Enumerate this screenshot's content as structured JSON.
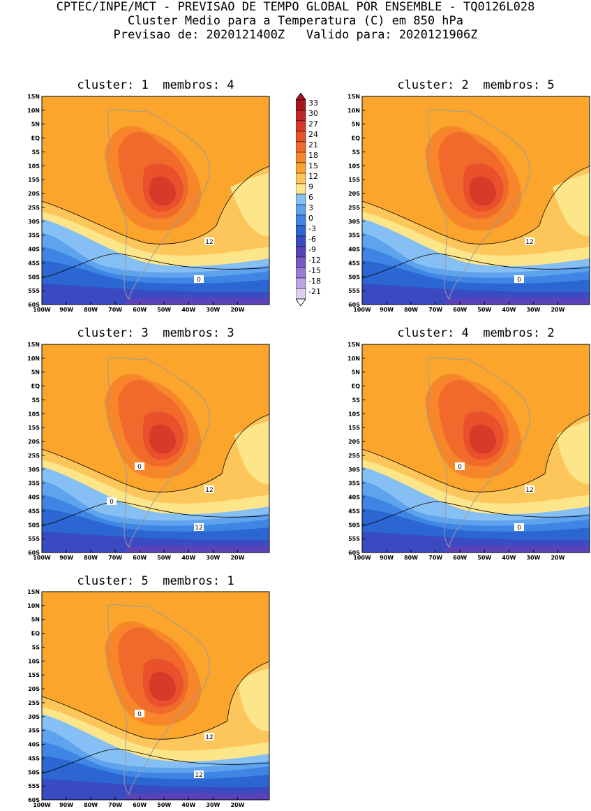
{
  "header": {
    "line1": "CPTEC/INPE/MCT - PREVISAO DE TEMPO GLOBAL POR ENSEMBLE - TQ0126L028",
    "line2": "Cluster Medio para a Temperatura (C) em 850 hPa",
    "line3": "Previsao de: 2020121400Z   Valido para: 2020121906Z"
  },
  "lat_labels": [
    "15N",
    "10N",
    "5N",
    "EQ",
    "5S",
    "10S",
    "15S",
    "20S",
    "25S",
    "30S",
    "35S",
    "40S",
    "45S",
    "50S",
    "55S",
    "60S"
  ],
  "lon_labels": [
    "100W",
    "90W",
    "80W",
    "70W",
    "60W",
    "50W",
    "40W",
    "30W",
    "20W"
  ],
  "colorbar": {
    "labels": [
      "33",
      "30",
      "27",
      "24",
      "21",
      "18",
      "15",
      "12",
      "9",
      "6",
      "3",
      "0",
      "-3",
      "-6",
      "-9",
      "-12",
      "-15",
      "-18",
      "-21"
    ],
    "colors": [
      "#a8151c",
      "#c0262b",
      "#d83a2a",
      "#e8512c",
      "#f26a2b",
      "#f7862a",
      "#fba52c",
      "#fdc65a",
      "#fde58a",
      "#86bff4",
      "#5fa2ee",
      "#3f85e3",
      "#2b66d3",
      "#3a4bc2",
      "#5a43b8",
      "#7a58c6",
      "#9a7ad4",
      "#bba4e2",
      "#dccff0"
    ]
  },
  "panels": [
    {
      "title": "cluster: 1  membros: 4",
      "contour_labels": [
        "12",
        "0"
      ]
    },
    {
      "title": "cluster: 2  membros: 5",
      "contour_labels": [
        "12",
        "0"
      ]
    },
    {
      "title": "cluster: 3  membros: 3",
      "contour_labels": [
        "12",
        "12",
        "0",
        "0"
      ]
    },
    {
      "title": "cluster: 4  membros: 2",
      "contour_labels": [
        "12",
        "0",
        "0"
      ]
    },
    {
      "title": "cluster: 5  membros: 1",
      "contour_labels": [
        "12",
        "12",
        "0"
      ]
    }
  ]
}
